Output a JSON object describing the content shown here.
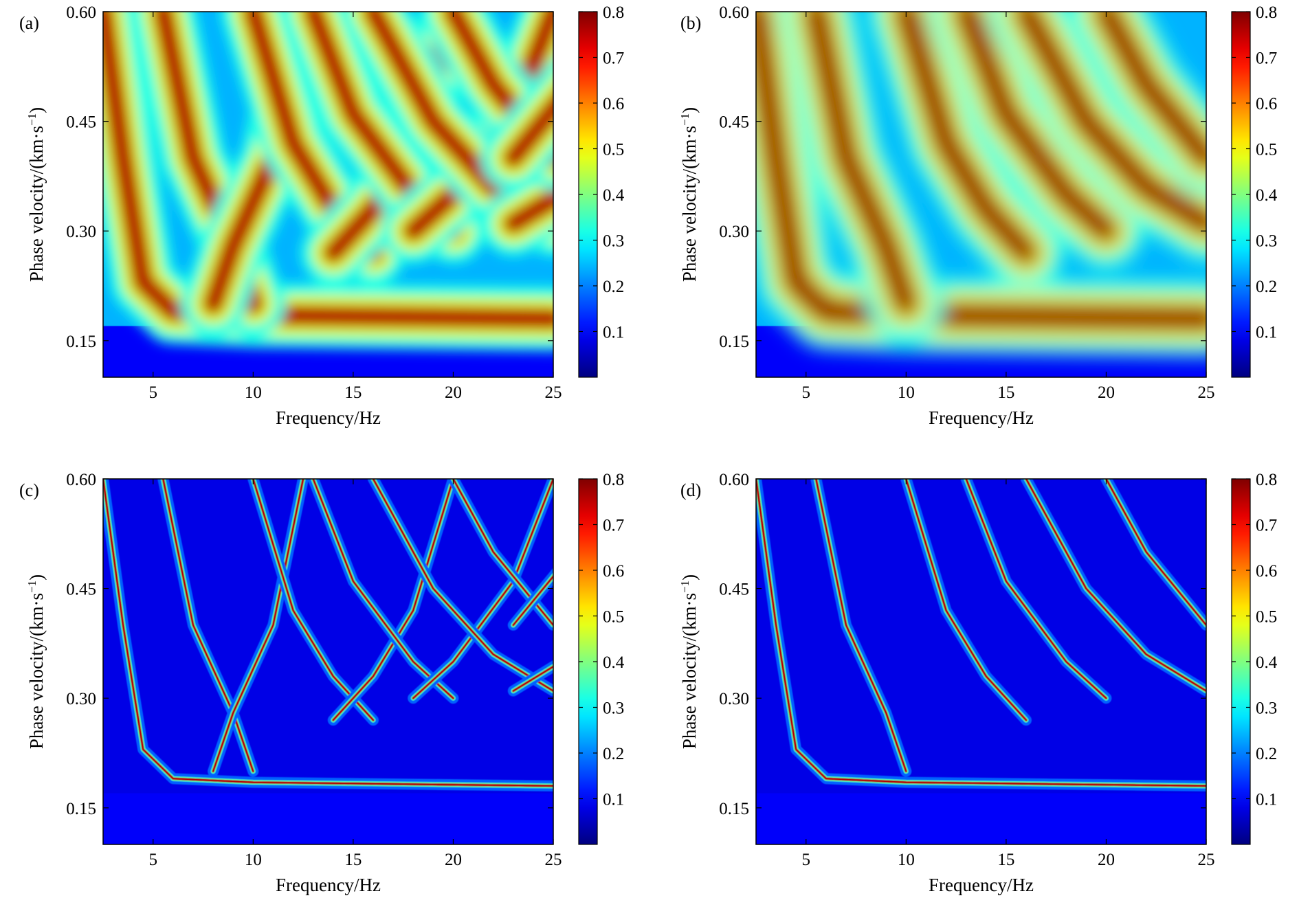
{
  "chart_data": [
    {
      "type": "heatmap",
      "panel_label": "(a)",
      "xlabel": "Frequency/Hz",
      "ylabel_main": "Phase velocity/(km·s",
      "ylabel_sup": "−1",
      "ylabel_close": ")",
      "xlim": [
        2.5,
        25
      ],
      "ylim": [
        0.1,
        0.6
      ],
      "xticks": [
        "5",
        "10",
        "15",
        "20",
        "25"
      ],
      "yticks": [
        "0.15",
        "0.30",
        "0.45",
        "0.60"
      ],
      "colorbar": {
        "range": [
          0,
          0.8
        ],
        "ticks": [
          "0.1",
          "0.2",
          "0.3",
          "0.4",
          "0.5",
          "0.6",
          "0.7",
          "0.8"
        ]
      },
      "colormap": "jet",
      "style": "broad",
      "mirror": true,
      "ridges": [
        {
          "mode": 0,
          "points": [
            [
              2.5,
              0.6
            ],
            [
              3.5,
              0.4
            ],
            [
              4.5,
              0.23
            ],
            [
              6,
              0.19
            ],
            [
              10,
              0.185
            ],
            [
              25,
              0.18
            ]
          ]
        },
        {
          "mode": 1,
          "points": [
            [
              5.5,
              0.6
            ],
            [
              7,
              0.4
            ],
            [
              9,
              0.28
            ],
            [
              10,
              0.2
            ]
          ]
        },
        {
          "mode": 2,
          "points": [
            [
              10,
              0.6
            ],
            [
              12,
              0.42
            ],
            [
              14,
              0.33
            ],
            [
              16,
              0.27
            ]
          ]
        },
        {
          "mode": 3,
          "points": [
            [
              13,
              0.6
            ],
            [
              15,
              0.46
            ],
            [
              18,
              0.35
            ],
            [
              20,
              0.3
            ]
          ]
        },
        {
          "mode": 4,
          "points": [
            [
              16,
              0.6
            ],
            [
              19,
              0.45
            ],
            [
              22,
              0.36
            ],
            [
              25,
              0.31
            ]
          ]
        },
        {
          "mode": 5,
          "points": [
            [
              20,
              0.6
            ],
            [
              22,
              0.5
            ],
            [
              25,
              0.4
            ]
          ]
        }
      ]
    },
    {
      "type": "heatmap",
      "panel_label": "(b)",
      "xlabel": "Frequency/Hz",
      "ylabel_main": "Phase velocity/(km·s",
      "ylabel_sup": "−1",
      "ylabel_close": ")",
      "xlim": [
        2.5,
        25
      ],
      "ylim": [
        0.1,
        0.6
      ],
      "xticks": [
        "5",
        "10",
        "15",
        "20",
        "25"
      ],
      "yticks": [
        "0.15",
        "0.30",
        "0.45",
        "0.60"
      ],
      "colorbar": {
        "range": [
          0,
          0.8
        ],
        "ticks": [
          "0.1",
          "0.2",
          "0.3",
          "0.4",
          "0.5",
          "0.6",
          "0.7",
          "0.8"
        ]
      },
      "colormap": "jet",
      "style": "smooth",
      "mirror": false,
      "ridges": [
        {
          "mode": 0,
          "points": [
            [
              2.5,
              0.6
            ],
            [
              3.5,
              0.4
            ],
            [
              4.5,
              0.23
            ],
            [
              6,
              0.19
            ],
            [
              10,
              0.185
            ],
            [
              25,
              0.18
            ]
          ]
        },
        {
          "mode": 1,
          "points": [
            [
              5.5,
              0.6
            ],
            [
              7,
              0.4
            ],
            [
              9,
              0.28
            ],
            [
              10,
              0.2
            ]
          ]
        },
        {
          "mode": 2,
          "points": [
            [
              10,
              0.6
            ],
            [
              12,
              0.42
            ],
            [
              14,
              0.33
            ],
            [
              16,
              0.27
            ]
          ]
        },
        {
          "mode": 3,
          "points": [
            [
              13,
              0.6
            ],
            [
              15,
              0.46
            ],
            [
              18,
              0.35
            ],
            [
              20,
              0.3
            ]
          ]
        },
        {
          "mode": 4,
          "points": [
            [
              16,
              0.6
            ],
            [
              19,
              0.45
            ],
            [
              22,
              0.36
            ],
            [
              25,
              0.31
            ]
          ]
        },
        {
          "mode": 5,
          "points": [
            [
              20,
              0.6
            ],
            [
              22,
              0.5
            ],
            [
              25,
              0.4
            ]
          ]
        }
      ]
    },
    {
      "type": "heatmap",
      "panel_label": "(c)",
      "xlabel": "Frequency/Hz",
      "ylabel_main": "Phase velocity/(km·s",
      "ylabel_sup": "−1",
      "ylabel_close": ")",
      "xlim": [
        2.5,
        25
      ],
      "ylim": [
        0.1,
        0.6
      ],
      "xticks": [
        "5",
        "10",
        "15",
        "20",
        "25"
      ],
      "yticks": [
        "0.15",
        "0.30",
        "0.45",
        "0.60"
      ],
      "colorbar": {
        "range": [
          0,
          0.8
        ],
        "ticks": [
          "0.1",
          "0.2",
          "0.3",
          "0.4",
          "0.5",
          "0.6",
          "0.7",
          "0.8"
        ]
      },
      "colormap": "jet",
      "style": "sharp",
      "mirror": true,
      "ridges": [
        {
          "mode": 0,
          "points": [
            [
              2.5,
              0.6
            ],
            [
              3.5,
              0.4
            ],
            [
              4.5,
              0.23
            ],
            [
              6,
              0.19
            ],
            [
              10,
              0.185
            ],
            [
              25,
              0.18
            ]
          ]
        },
        {
          "mode": 1,
          "points": [
            [
              5.5,
              0.6
            ],
            [
              7,
              0.4
            ],
            [
              9,
              0.28
            ],
            [
              10,
              0.2
            ]
          ]
        },
        {
          "mode": 2,
          "points": [
            [
              10,
              0.6
            ],
            [
              12,
              0.42
            ],
            [
              14,
              0.33
            ],
            [
              16,
              0.27
            ]
          ]
        },
        {
          "mode": 3,
          "points": [
            [
              13,
              0.6
            ],
            [
              15,
              0.46
            ],
            [
              18,
              0.35
            ],
            [
              20,
              0.3
            ]
          ]
        },
        {
          "mode": 4,
          "points": [
            [
              16,
              0.6
            ],
            [
              19,
              0.45
            ],
            [
              22,
              0.36
            ],
            [
              25,
              0.31
            ]
          ]
        },
        {
          "mode": 5,
          "points": [
            [
              20,
              0.6
            ],
            [
              22,
              0.5
            ],
            [
              25,
              0.4
            ]
          ]
        }
      ]
    },
    {
      "type": "heatmap",
      "panel_label": "(d)",
      "xlabel": "Frequency/Hz",
      "ylabel_main": "Phase velocity/(km·s",
      "ylabel_sup": "−1",
      "ylabel_close": ")",
      "xlim": [
        2.5,
        25
      ],
      "ylim": [
        0.1,
        0.6
      ],
      "xticks": [
        "5",
        "10",
        "15",
        "20",
        "25"
      ],
      "yticks": [
        "0.15",
        "0.30",
        "0.45",
        "0.60"
      ],
      "colorbar": {
        "range": [
          0,
          0.8
        ],
        "ticks": [
          "0.1",
          "0.2",
          "0.3",
          "0.4",
          "0.5",
          "0.6",
          "0.7",
          "0.8"
        ]
      },
      "colormap": "jet",
      "style": "sharp",
      "mirror": false,
      "ridges": [
        {
          "mode": 0,
          "points": [
            [
              2.5,
              0.6
            ],
            [
              3.5,
              0.4
            ],
            [
              4.5,
              0.23
            ],
            [
              6,
              0.19
            ],
            [
              10,
              0.185
            ],
            [
              25,
              0.18
            ]
          ]
        },
        {
          "mode": 1,
          "points": [
            [
              5.5,
              0.6
            ],
            [
              7,
              0.4
            ],
            [
              9,
              0.28
            ],
            [
              10,
              0.2
            ]
          ]
        },
        {
          "mode": 2,
          "points": [
            [
              10,
              0.6
            ],
            [
              12,
              0.42
            ],
            [
              14,
              0.33
            ],
            [
              16,
              0.27
            ]
          ]
        },
        {
          "mode": 3,
          "points": [
            [
              13,
              0.6
            ],
            [
              15,
              0.46
            ],
            [
              18,
              0.35
            ],
            [
              20,
              0.3
            ]
          ]
        },
        {
          "mode": 4,
          "points": [
            [
              16,
              0.6
            ],
            [
              19,
              0.45
            ],
            [
              22,
              0.36
            ],
            [
              25,
              0.31
            ]
          ]
        },
        {
          "mode": 5,
          "points": [
            [
              20,
              0.6
            ],
            [
              22,
              0.5
            ],
            [
              25,
              0.4
            ]
          ]
        }
      ]
    }
  ]
}
